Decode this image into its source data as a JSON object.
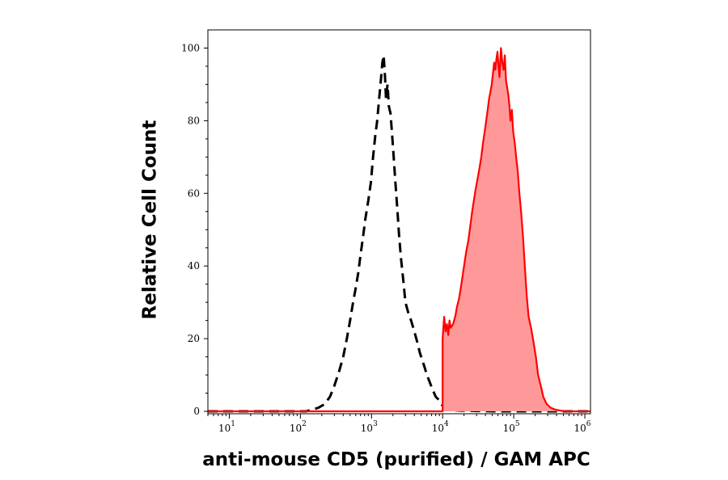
{
  "chart_data": {
    "type": "area",
    "title": "",
    "xlabel": "anti-mouse CD5 (purified) / GAM APC",
    "ylabel": "Relative Cell Count",
    "x_scale": "log",
    "xlim": [
      5,
      1200000
    ],
    "ylim": [
      0,
      105
    ],
    "x_ticks": [
      {
        "value": 10,
        "base": "10",
        "exp": "1"
      },
      {
        "value": 100,
        "base": "10",
        "exp": "2"
      },
      {
        "value": 1000,
        "base": "10",
        "exp": "3"
      },
      {
        "value": 10000,
        "base": "10",
        "exp": "4"
      },
      {
        "value": 100000,
        "base": "10",
        "exp": "5"
      },
      {
        "value": 1000000,
        "base": "10",
        "exp": "6"
      }
    ],
    "y_ticks": [
      {
        "value": 0,
        "label": "0"
      },
      {
        "value": 20,
        "label": "20"
      },
      {
        "value": 40,
        "label": "40"
      },
      {
        "value": 60,
        "label": "60"
      },
      {
        "value": 80,
        "label": "80"
      },
      {
        "value": 100,
        "label": "100"
      }
    ],
    "grid": false,
    "series": [
      {
        "style": "dashed-line",
        "color": "#000000",
        "x": [
          5,
          60,
          120,
          150,
          180,
          220,
          260,
          300,
          350,
          400,
          450,
          500,
          550,
          600,
          650,
          700,
          760,
          820,
          900,
          980,
          1050,
          1130,
          1200,
          1280,
          1350,
          1420,
          1480,
          1550,
          1600,
          1680,
          1750,
          1850,
          1950,
          2050,
          2150,
          2300,
          2450,
          2600,
          2800,
          3000,
          3300,
          3600,
          4000,
          4400,
          4800,
          5200,
          5600,
          6000,
          6600,
          7200,
          8000,
          9000,
          10000,
          11000,
          12000,
          14000,
          18000,
          30000,
          60000,
          150000,
          400000,
          1200000
        ],
        "y": [
          0,
          0,
          0,
          0.5,
          1,
          2,
          4,
          7,
          11,
          15,
          20,
          25,
          30,
          34,
          38,
          43,
          48,
          53,
          58,
          63,
          70,
          76,
          80,
          86,
          91,
          96,
          98,
          92,
          86,
          90,
          84,
          82,
          76,
          70,
          64,
          56,
          48,
          42,
          36,
          30,
          27,
          25,
          22,
          19,
          16,
          14,
          12,
          10,
          8,
          6,
          4,
          3,
          1.5,
          1,
          0.5,
          0.3,
          0.2,
          0.1,
          0,
          0,
          0,
          0
        ]
      },
      {
        "style": "filled-area",
        "color": "#ff0000",
        "fill": "#ff9999",
        "x": [
          5,
          10000,
          10000,
          10500,
          11000,
          11500,
          12000,
          12500,
          13000,
          14000,
          15000,
          16000,
          17000,
          18000,
          19000,
          20000,
          21500,
          23000,
          24500,
          26000,
          27500,
          29000,
          31000,
          33000,
          35000,
          37000,
          39000,
          41000,
          43000,
          45000,
          47000,
          49000,
          51000,
          53000,
          55000,
          57000,
          59000,
          61000,
          63000,
          66000,
          69000,
          72000,
          75000,
          78000,
          81000,
          84000,
          87000,
          90000,
          94000,
          98000,
          103000,
          108000,
          114000,
          120000,
          127000,
          135000,
          143000,
          152000,
          162000,
          175000,
          190000,
          205000,
          220000,
          240000,
          260000,
          290000,
          330000,
          380000,
          450000,
          550000,
          700000,
          1200000
        ],
        "y": [
          0,
          0,
          20,
          26,
          22,
          24,
          21,
          25,
          23,
          24,
          26,
          29,
          31,
          34,
          37,
          40,
          44,
          47,
          51,
          55,
          58,
          61,
          64,
          67,
          70,
          74,
          77,
          80,
          83,
          86,
          88,
          90,
          93,
          96,
          94,
          97,
          99,
          95,
          92,
          100,
          96,
          94,
          98,
          91,
          89,
          87,
          84,
          80,
          83,
          77,
          74,
          70,
          66,
          60,
          55,
          48,
          40,
          32,
          26,
          23,
          19,
          15,
          10,
          7,
          4,
          2,
          1,
          0.5,
          0.2,
          0,
          0,
          0
        ]
      }
    ]
  }
}
